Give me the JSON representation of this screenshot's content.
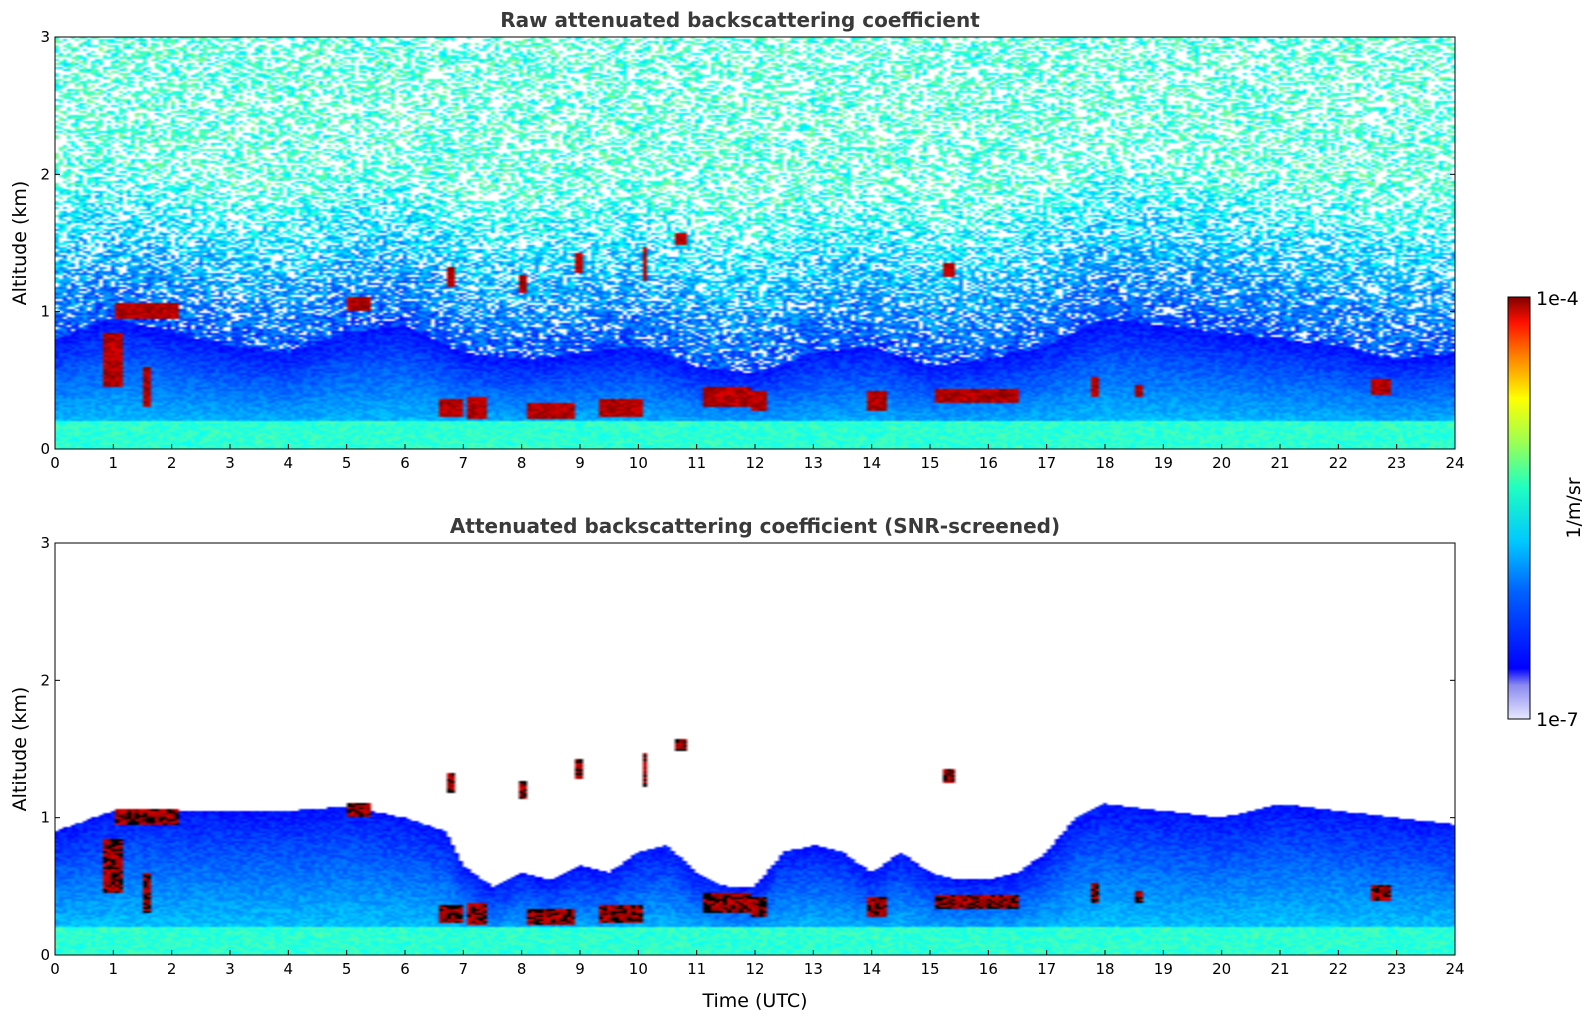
{
  "chart_data": [
    {
      "type": "heatmap",
      "title": "Raw attenuated backscattering coefficient",
      "xlabel": "",
      "ylabel": "Altitude (km)",
      "xlim": [
        0,
        24
      ],
      "ylim": [
        0,
        3
      ],
      "xticks": [
        "0",
        "1",
        "2",
        "3",
        "4",
        "5",
        "6",
        "7",
        "8",
        "9",
        "10",
        "11",
        "12",
        "13",
        "14",
        "15",
        "16",
        "17",
        "18",
        "19",
        "20",
        "21",
        "22",
        "23",
        "24"
      ],
      "yticks": [
        "0",
        "1",
        "2",
        "3"
      ],
      "screened": false,
      "boundary_layer_top_km": [
        [
          0,
          0.8
        ],
        [
          1,
          0.95
        ],
        [
          2,
          0.85
        ],
        [
          3,
          0.75
        ],
        [
          4,
          0.7
        ],
        [
          5,
          0.85
        ],
        [
          6,
          0.9
        ],
        [
          7,
          0.7
        ],
        [
          8,
          0.65
        ],
        [
          9,
          0.7
        ],
        [
          10,
          0.75
        ],
        [
          11,
          0.6
        ],
        [
          12,
          0.55
        ],
        [
          13,
          0.7
        ],
        [
          14,
          0.75
        ],
        [
          15,
          0.6
        ],
        [
          16,
          0.65
        ],
        [
          17,
          0.75
        ],
        [
          18,
          0.95
        ],
        [
          19,
          0.9
        ],
        [
          20,
          0.85
        ],
        [
          21,
          0.8
        ],
        [
          22,
          0.75
        ],
        [
          23,
          0.65
        ],
        [
          24,
          0.7
        ]
      ],
      "cloud_patches": [
        {
          "t": 1.6,
          "z": 1.0,
          "w": 1.1,
          "h": 0.12
        },
        {
          "t": 1.0,
          "z": 0.65,
          "w": 0.3,
          "h": 0.4
        },
        {
          "t": 1.55,
          "z": 0.45,
          "w": 0.15,
          "h": 0.3
        },
        {
          "t": 5.2,
          "z": 1.05,
          "w": 0.45,
          "h": 0.1
        },
        {
          "t": 6.8,
          "z": 0.3,
          "w": 0.4,
          "h": 0.12
        },
        {
          "t": 6.8,
          "z": 1.25,
          "w": 0.1,
          "h": 0.15
        },
        {
          "t": 7.25,
          "z": 0.3,
          "w": 0.35,
          "h": 0.15
        },
        {
          "t": 8.0,
          "z": 1.2,
          "w": 0.12,
          "h": 0.12
        },
        {
          "t": 8.5,
          "z": 0.28,
          "w": 0.8,
          "h": 0.12
        },
        {
          "t": 9.0,
          "z": 1.35,
          "w": 0.12,
          "h": 0.14
        },
        {
          "t": 9.7,
          "z": 0.3,
          "w": 0.7,
          "h": 0.14
        },
        {
          "t": 10.1,
          "z": 1.35,
          "w": 0.1,
          "h": 0.25
        },
        {
          "t": 10.75,
          "z": 1.53,
          "w": 0.22,
          "h": 0.1
        },
        {
          "t": 11.5,
          "z": 0.38,
          "w": 0.8,
          "h": 0.14
        },
        {
          "t": 12.05,
          "z": 0.35,
          "w": 0.25,
          "h": 0.15
        },
        {
          "t": 14.1,
          "z": 0.35,
          "w": 0.3,
          "h": 0.15
        },
        {
          "t": 15.35,
          "z": 1.3,
          "w": 0.2,
          "h": 0.1
        },
        {
          "t": 15.8,
          "z": 0.38,
          "w": 1.4,
          "h": 0.1
        },
        {
          "t": 17.85,
          "z": 0.45,
          "w": 0.12,
          "h": 0.15
        },
        {
          "t": 18.6,
          "z": 0.42,
          "w": 0.15,
          "h": 0.08
        },
        {
          "t": 22.75,
          "z": 0.45,
          "w": 0.35,
          "h": 0.12
        }
      ]
    },
    {
      "type": "heatmap",
      "title": "Attenuated backscattering coefficient (SNR-screened)",
      "xlabel": "Time (UTC)",
      "ylabel": "Altitude (km)",
      "xlim": [
        0,
        24
      ],
      "ylim": [
        0,
        3
      ],
      "xticks": [
        "0",
        "1",
        "2",
        "3",
        "4",
        "5",
        "6",
        "7",
        "8",
        "9",
        "10",
        "11",
        "12",
        "13",
        "14",
        "15",
        "16",
        "17",
        "18",
        "19",
        "20",
        "21",
        "22",
        "23",
        "24"
      ],
      "yticks": [
        "0",
        "1",
        "2",
        "3"
      ],
      "screened": true,
      "boundary_layer_top_km": [
        [
          0,
          0.9
        ],
        [
          1,
          1.05
        ],
        [
          2,
          1.05
        ],
        [
          3,
          1.05
        ],
        [
          4,
          1.05
        ],
        [
          5,
          1.08
        ],
        [
          6,
          1.0
        ],
        [
          6.7,
          0.9
        ],
        [
          7,
          0.65
        ],
        [
          7.5,
          0.5
        ],
        [
          8,
          0.6
        ],
        [
          8.5,
          0.55
        ],
        [
          9,
          0.65
        ],
        [
          9.5,
          0.6
        ],
        [
          10,
          0.75
        ],
        [
          10.5,
          0.8
        ],
        [
          11,
          0.6
        ],
        [
          11.5,
          0.5
        ],
        [
          12,
          0.5
        ],
        [
          12.5,
          0.75
        ],
        [
          13,
          0.8
        ],
        [
          13.5,
          0.75
        ],
        [
          14,
          0.6
        ],
        [
          14.5,
          0.75
        ],
        [
          15,
          0.6
        ],
        [
          15.5,
          0.55
        ],
        [
          16,
          0.55
        ],
        [
          16.5,
          0.6
        ],
        [
          17,
          0.75
        ],
        [
          17.5,
          1.0
        ],
        [
          18,
          1.1
        ],
        [
          19,
          1.05
        ],
        [
          20,
          1.0
        ],
        [
          21,
          1.1
        ],
        [
          22,
          1.05
        ],
        [
          23,
          1.0
        ],
        [
          24,
          0.95
        ]
      ],
      "cloud_patches": [
        {
          "t": 1.6,
          "z": 1.0,
          "w": 1.1,
          "h": 0.12
        },
        {
          "t": 1.0,
          "z": 0.65,
          "w": 0.3,
          "h": 0.4
        },
        {
          "t": 1.55,
          "z": 0.45,
          "w": 0.15,
          "h": 0.3
        },
        {
          "t": 5.2,
          "z": 1.05,
          "w": 0.45,
          "h": 0.1
        },
        {
          "t": 6.8,
          "z": 0.3,
          "w": 0.4,
          "h": 0.12
        },
        {
          "t": 6.8,
          "z": 1.25,
          "w": 0.1,
          "h": 0.15
        },
        {
          "t": 7.25,
          "z": 0.3,
          "w": 0.35,
          "h": 0.15
        },
        {
          "t": 8.0,
          "z": 1.2,
          "w": 0.12,
          "h": 0.12
        },
        {
          "t": 8.5,
          "z": 0.28,
          "w": 0.8,
          "h": 0.12
        },
        {
          "t": 9.0,
          "z": 1.35,
          "w": 0.12,
          "h": 0.14
        },
        {
          "t": 9.7,
          "z": 0.3,
          "w": 0.7,
          "h": 0.14
        },
        {
          "t": 10.1,
          "z": 1.35,
          "w": 0.1,
          "h": 0.25
        },
        {
          "t": 10.75,
          "z": 1.53,
          "w": 0.22,
          "h": 0.1
        },
        {
          "t": 11.5,
          "z": 0.38,
          "w": 0.8,
          "h": 0.14
        },
        {
          "t": 12.05,
          "z": 0.35,
          "w": 0.25,
          "h": 0.15
        },
        {
          "t": 14.1,
          "z": 0.35,
          "w": 0.3,
          "h": 0.15
        },
        {
          "t": 15.35,
          "z": 1.3,
          "w": 0.2,
          "h": 0.1
        },
        {
          "t": 15.8,
          "z": 0.38,
          "w": 1.4,
          "h": 0.1
        },
        {
          "t": 17.85,
          "z": 0.45,
          "w": 0.12,
          "h": 0.15
        },
        {
          "t": 18.6,
          "z": 0.42,
          "w": 0.15,
          "h": 0.08
        },
        {
          "t": 22.75,
          "z": 0.45,
          "w": 0.35,
          "h": 0.12
        }
      ]
    }
  ],
  "colorbar": {
    "label": "1/m/sr",
    "max_label": "1e-4",
    "min_label": "1e-7",
    "colormap": "jet",
    "scale": "log",
    "range": [
      1e-07,
      0.0001
    ]
  },
  "colors": {
    "title": "#3a3a3a",
    "low": "#00008f",
    "mid": "#00ffff",
    "high": "#800000",
    "clip": "#000000"
  }
}
